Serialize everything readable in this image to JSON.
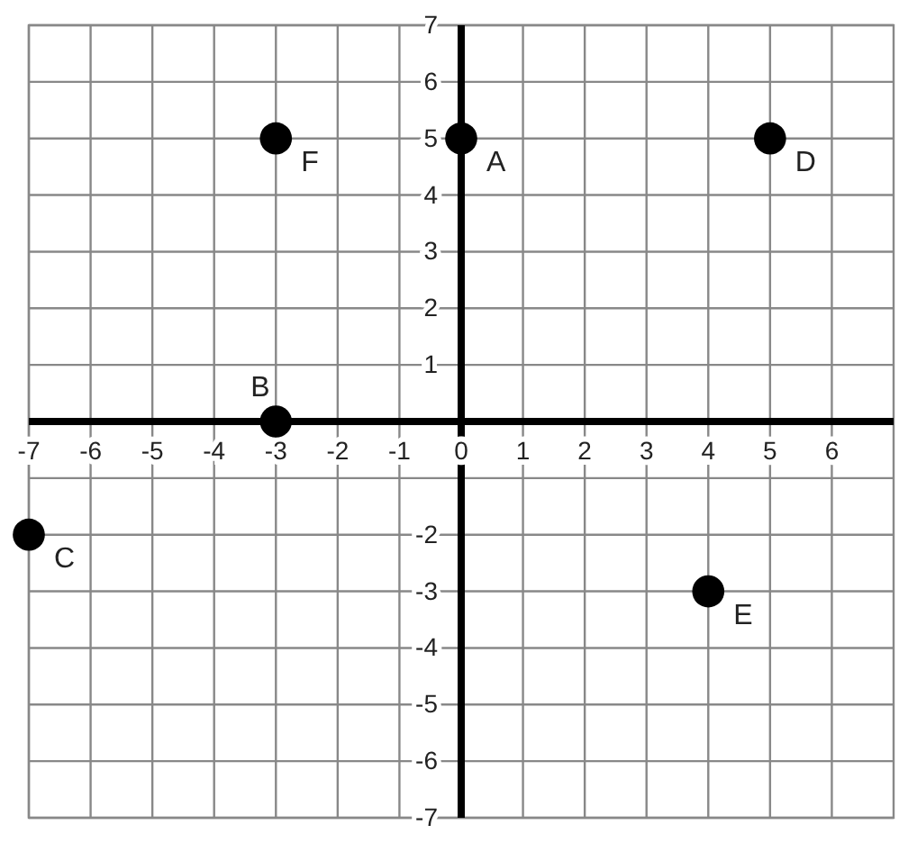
{
  "chart_data": {
    "type": "scatter",
    "x": [
      0,
      -3,
      -7,
      5,
      4,
      -3
    ],
    "values": [
      5,
      0,
      -2,
      5,
      -3,
      5
    ],
    "color": "#000000",
    "marker": "circle",
    "xlim": [
      -7,
      7
    ],
    "ylim": [
      -7,
      7
    ],
    "xticks": [
      -7,
      -6,
      -5,
      -4,
      -3,
      -2,
      -1,
      0,
      1,
      2,
      3,
      4,
      5,
      6
    ],
    "yticks": [
      -7,
      -6,
      -5,
      -4,
      -3,
      -2,
      {
        "value": -1,
        "label": null
      },
      {
        "value": 0,
        "label": null
      },
      1,
      2,
      3,
      4,
      5,
      6,
      7
    ],
    "grid": true,
    "annotations": [
      {
        "text": "A",
        "x": 0,
        "y": 5
      },
      {
        "text": "B",
        "x": -3,
        "y": 0
      },
      {
        "text": "C",
        "x": -7,
        "y": -2
      },
      {
        "text": "D",
        "x": 5,
        "y": 5
      },
      {
        "text": "E",
        "x": 4,
        "y": -3
      },
      {
        "text": "F",
        "x": -3,
        "y": 5
      }
    ]
  }
}
